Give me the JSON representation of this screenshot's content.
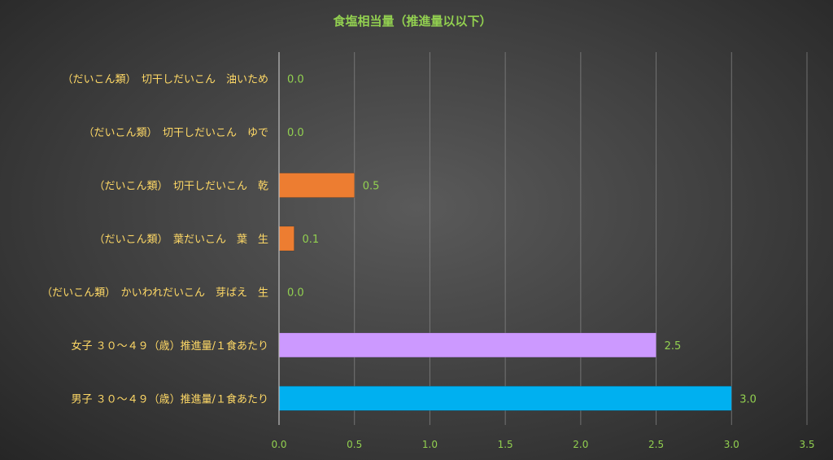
{
  "chart_data": {
    "type": "bar",
    "orientation": "horizontal",
    "title": "食塩相当量（推進量以以下）",
    "xlabel": "",
    "ylabel": "",
    "xlim": [
      0,
      3.5
    ],
    "xticks": [
      "0.0",
      "0.5",
      "1.0",
      "1.5",
      "2.0",
      "2.5",
      "3.0",
      "3.5"
    ],
    "xtick_values": [
      0,
      0.5,
      1.0,
      1.5,
      2.0,
      2.5,
      3.0,
      3.5
    ],
    "grid": true,
    "legend": "none",
    "categories": [
      "（だいこん類）　切干しだいこん　油いため",
      "（だいこん類）　切干しだいこん　ゆで",
      "（だいこん類）　切干しだいこん　乾",
      "（だいこん類）　葉だいこん　葉　生",
      "（だいこん類）　かいわれだいこん　芽ばえ　生",
      "女子 ３０～４９（歳）推進量/１食あたり",
      "男子 ３０～４９（歳）推進量/１食あたり"
    ],
    "values": [
      0.0,
      0.0,
      0.5,
      0.1,
      0.0,
      2.5,
      3.0
    ],
    "data_labels": [
      "0.0",
      "0.0",
      "0.5",
      "0.1",
      "0.0",
      "2.5",
      "3.0"
    ],
    "bar_colors": [
      "#ed7d31",
      "#ed7d31",
      "#ed7d31",
      "#ed7d31",
      "#ed7d31",
      "#cc99ff",
      "#00b0f0"
    ]
  }
}
